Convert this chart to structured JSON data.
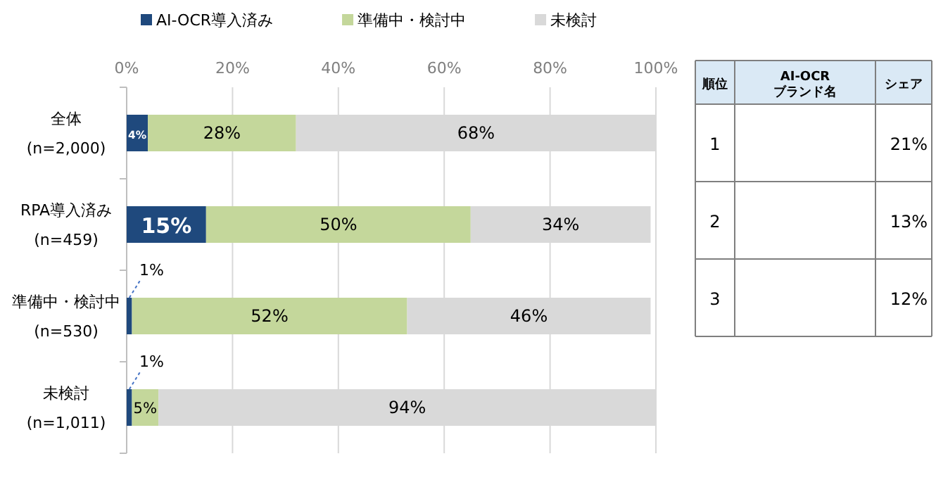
{
  "chart_data": [
    {
      "type": "bar",
      "orientation": "horizontal",
      "stacked": true,
      "categories": [
        "全体\n(n=2,000)",
        "RPA導入済み\n(n=459)",
        "準備中・検討中\n(n=530)",
        "未検討\n(n=1,011)"
      ],
      "series": [
        {
          "name": "AI-OCR導入済み",
          "color": "#1f497d",
          "values": [
            4,
            15,
            1,
            1
          ],
          "value_labels": [
            "4%",
            "15%",
            "1%",
            "1%"
          ]
        },
        {
          "name": "準備中・検討中",
          "color": "#c4d79b",
          "values": [
            28,
            50,
            52,
            5
          ],
          "value_labels": [
            "28%",
            "50%",
            "52%",
            "5%"
          ]
        },
        {
          "name": "未検討",
          "color": "#d9d9d9",
          "values": [
            68,
            34,
            46,
            94
          ],
          "value_labels": [
            "68%",
            "34%",
            "46%",
            "94%"
          ]
        }
      ],
      "xlim": [
        0,
        100
      ],
      "xticks": [
        {
          "value": 0,
          "label": "0%"
        },
        {
          "value": 20,
          "label": "20%"
        },
        {
          "value": 40,
          "label": "40%"
        },
        {
          "value": 60,
          "label": "60%"
        },
        {
          "value": 80,
          "label": "80%"
        },
        {
          "value": 100,
          "label": "100%"
        }
      ],
      "grid": "x",
      "legend": "top"
    },
    {
      "type": "other",
      "categories": [
        "順位",
        "AI-OCR\nブランド名",
        "シェア"
      ],
      "y_categories": [
        "1",
        "2",
        "3"
      ],
      "annotations": [
        "21%",
        "13%",
        "12%"
      ]
    }
  ]
}
